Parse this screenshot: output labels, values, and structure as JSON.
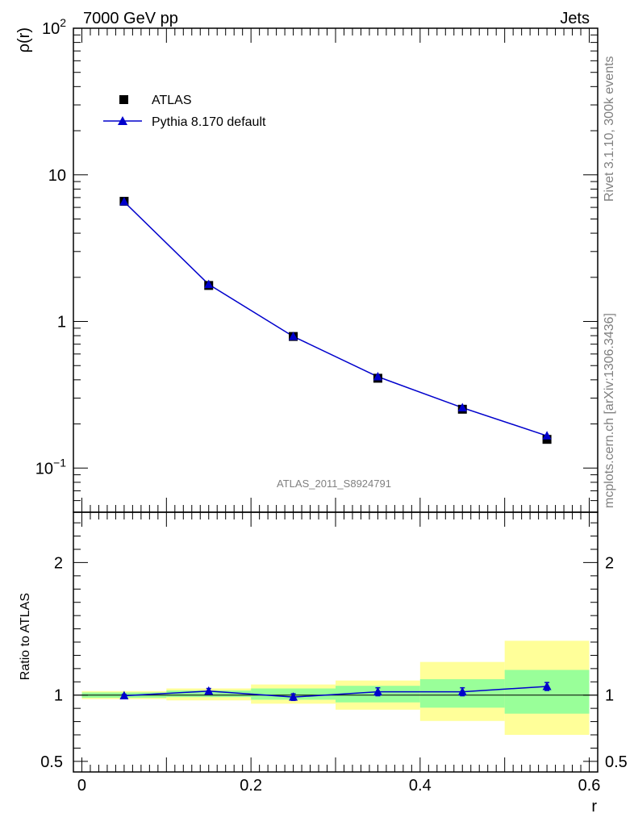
{
  "header": {
    "left": "7000 GeV pp",
    "right": "Jets",
    "side_top": "Rivet 3.1.10,  300k events",
    "side_bottom": "mcplots.cern.ch [arXiv:1306.3436]",
    "analysis_id": "ATLAS_2011_S8924791"
  },
  "colors": {
    "mc": "#0000cc",
    "data": "#000000",
    "band_inner": "#99ff99",
    "band_outer": "#ffff99"
  },
  "legend": {
    "data_label": "ATLAS",
    "mc_label": "Pythia 8.170 default"
  },
  "chart_data": [
    {
      "type": "line",
      "panel": "main",
      "ylabel": "ρ(r)",
      "xlabel": "",
      "yscale": "log",
      "ylim": [
        0.05,
        100
      ],
      "xlim": [
        -0.01,
        0.61
      ],
      "y_tick_labels": [
        "10^-1",
        "1",
        "10",
        "10^2"
      ],
      "series": [
        {
          "name": "ATLAS",
          "style": "square-markers",
          "x": [
            0.05,
            0.15,
            0.25,
            0.35,
            0.45,
            0.55
          ],
          "y": [
            6.6,
            1.76,
            0.79,
            0.41,
            0.252,
            0.157
          ]
        },
        {
          "name": "Pythia 8.170 default",
          "style": "line-triangles",
          "x": [
            0.05,
            0.15,
            0.25,
            0.35,
            0.45,
            0.55
          ],
          "y": [
            6.55,
            1.79,
            0.79,
            0.42,
            0.258,
            0.166
          ]
        }
      ]
    },
    {
      "type": "line",
      "panel": "ratio",
      "ylabel": "Ratio to ATLAS",
      "xlabel": "r",
      "ylim": [
        0.42,
        2.38
      ],
      "y_ticks": [
        0.5,
        1,
        2
      ],
      "y_tick_labels": [
        "0.5",
        "1",
        "2"
      ],
      "x_ticks": [
        0,
        0.2,
        0.4,
        0.6
      ],
      "x_tick_labels": [
        "0",
        "0.2",
        "0.4",
        "0.6"
      ],
      "bins": [
        [
          0.0,
          0.1
        ],
        [
          0.1,
          0.2
        ],
        [
          0.2,
          0.3
        ],
        [
          0.3,
          0.4
        ],
        [
          0.4,
          0.5
        ],
        [
          0.5,
          0.6
        ]
      ],
      "band_inner": [
        [
          0.98,
          1.02
        ],
        [
          0.985,
          1.035
        ],
        [
          0.965,
          1.05
        ],
        [
          0.945,
          1.07
        ],
        [
          0.905,
          1.12
        ],
        [
          0.86,
          1.19
        ]
      ],
      "band_outer": [
        [
          0.97,
          1.03
        ],
        [
          0.96,
          1.05
        ],
        [
          0.935,
          1.08
        ],
        [
          0.89,
          1.11
        ],
        [
          0.805,
          1.25
        ],
        [
          0.7,
          1.41
        ]
      ],
      "series": [
        {
          "name": "Pythia 8.170 default",
          "x": [
            0.05,
            0.15,
            0.25,
            0.35,
            0.45,
            0.55
          ],
          "y": [
            0.995,
            1.03,
            0.985,
            1.025,
            1.025,
            1.065
          ],
          "err": [
            0.01,
            0.02,
            0.025,
            0.03,
            0.03,
            0.03
          ]
        }
      ]
    }
  ]
}
